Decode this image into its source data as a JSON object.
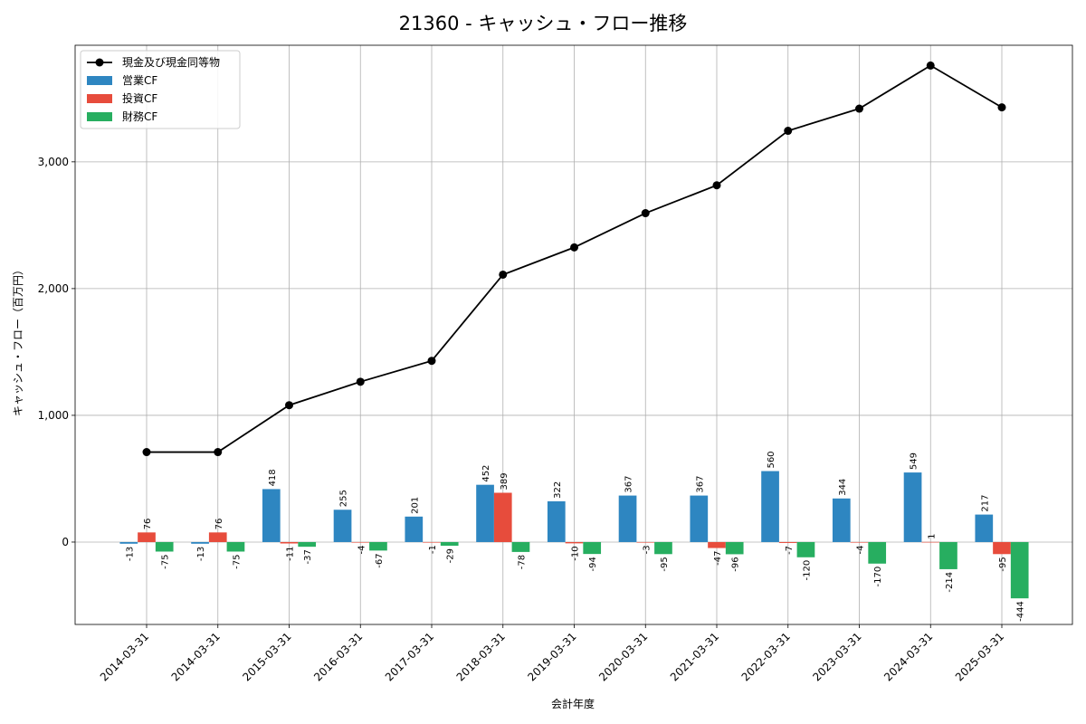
{
  "chart_data": {
    "type": "bar",
    "title": "21360 - キャッシュ・フロー推移",
    "xlabel": "会計年度",
    "ylabel": "キャッシュ・フロー（百万円）",
    "categories": [
      "2014-03-31",
      "2014-03-31",
      "2015-03-31",
      "2016-03-31",
      "2017-03-31",
      "2018-03-31",
      "2019-03-31",
      "2020-03-31",
      "2021-03-31",
      "2022-03-31",
      "2023-03-31",
      "2024-03-31",
      "2025-03-31"
    ],
    "yticks": [
      0,
      1000,
      2000,
      3000
    ],
    "ytick_labels": [
      "0",
      "1,000",
      "2,000",
      "3,000"
    ],
    "ylim": [
      -650,
      3920
    ],
    "grid": true,
    "legend_position": "top-left",
    "line_series": {
      "name": "現金及び現金同等物",
      "color": "#000000",
      "values": [
        710,
        710,
        1080,
        1265,
        1430,
        2110,
        2325,
        2595,
        2815,
        3245,
        3420,
        3760,
        3430
      ]
    },
    "series": [
      {
        "name": "営業CF",
        "color": "#2e86c1",
        "values": [
          -13,
          -13,
          418,
          255,
          201,
          452,
          322,
          367,
          367,
          560,
          344,
          549,
          217
        ],
        "labels": [
          "-13",
          "-13",
          "418",
          "255",
          "201",
          "452",
          "322",
          "367",
          "367",
          "560",
          "344",
          "549",
          "217"
        ]
      },
      {
        "name": "投資CF",
        "color": "#e74c3c",
        "values": [
          76,
          76,
          -11,
          -4,
          -1,
          389,
          -10,
          -3,
          -47,
          -7,
          -4,
          1,
          -95
        ],
        "labels": [
          "76",
          "76",
          "-11",
          "-4",
          "-1",
          "389",
          "-10",
          "-3",
          "-47",
          "-7",
          "-4",
          "1",
          "-95"
        ]
      },
      {
        "name": "財務CF",
        "color": "#27ae60",
        "values": [
          -75,
          -75,
          -37,
          -67,
          -29,
          -78,
          -94,
          -95,
          -96,
          -120,
          -170,
          -214,
          -444
        ],
        "labels": [
          "-75",
          "-75",
          "-37",
          "-67",
          "-29",
          "-78",
          "-94",
          "-95",
          "-96",
          "-120",
          "-170",
          "-214",
          "-444"
        ]
      }
    ]
  }
}
